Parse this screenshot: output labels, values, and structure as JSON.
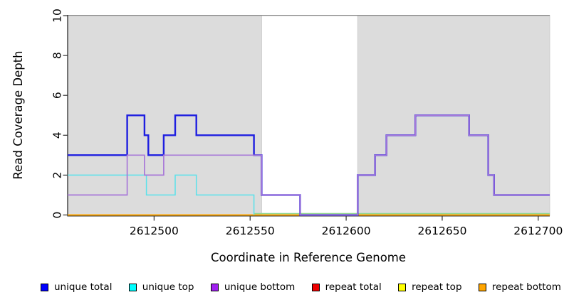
{
  "chart_data": {
    "type": "line",
    "subtype": "step-after-coverage",
    "title": "",
    "xlabel": "Coordinate in Reference Genome",
    "ylabel": "Read Coverage Depth",
    "xlim": [
      2612455,
      2612706
    ],
    "ylim": [
      0,
      10
    ],
    "x_ticks": [
      2612500,
      2612550,
      2612600,
      2612650,
      2612700
    ],
    "y_ticks": [
      0,
      2,
      4,
      6,
      8,
      10
    ],
    "grid": false,
    "legend_position": "bottom",
    "shaded_regions": [
      {
        "from": 2612455,
        "to": 2612556,
        "color": "#dcdcdc"
      },
      {
        "from": 2612606,
        "to": 2612706,
        "color": "#dcdcdc"
      }
    ],
    "series": [
      {
        "name": "unique total",
        "color": "#1e1ee0",
        "width": 2.4,
        "extend": true,
        "steps": [
          [
            2612455,
            3
          ],
          [
            2612486,
            5
          ],
          [
            2612495,
            4
          ],
          [
            2612497,
            3
          ],
          [
            2612505,
            4
          ],
          [
            2612511,
            5
          ],
          [
            2612522,
            4
          ],
          [
            2612552,
            3
          ],
          [
            2612556,
            1
          ],
          [
            2612576,
            0
          ],
          [
            2612606,
            2
          ],
          [
            2612615,
            3
          ],
          [
            2612621,
            4
          ],
          [
            2612636,
            5
          ],
          [
            2612664,
            4
          ],
          [
            2612674,
            2
          ],
          [
            2612677,
            1
          ]
        ]
      },
      {
        "name": "unique top",
        "color": "#5ae2ea",
        "width": 1.5,
        "extend": false,
        "steps": [
          [
            2612455,
            2
          ],
          [
            2612496,
            1
          ],
          [
            2612511,
            2
          ],
          [
            2612522,
            1
          ],
          [
            2612552,
            0
          ]
        ]
      },
      {
        "name": "unique bottom",
        "color": "#a878d8",
        "width": 1.7,
        "extend": true,
        "steps": [
          [
            2612455,
            1
          ],
          [
            2612486,
            3
          ],
          [
            2612495,
            2
          ],
          [
            2612505,
            3
          ],
          [
            2612556,
            1
          ],
          [
            2612576,
            0
          ],
          [
            2612606,
            2
          ],
          [
            2612615,
            3
          ],
          [
            2612621,
            4
          ],
          [
            2612636,
            5
          ],
          [
            2612664,
            4
          ],
          [
            2612674,
            2
          ],
          [
            2612677,
            1
          ]
        ]
      },
      {
        "name": "repeat total",
        "color": "#ee0000",
        "width": 1.5,
        "extend": true,
        "steps": [
          [
            2612455,
            0
          ]
        ]
      },
      {
        "name": "repeat top",
        "color": "#ffff00",
        "width": 1.5,
        "extend": true,
        "steps": [
          [
            2612455,
            0
          ]
        ]
      },
      {
        "name": "repeat bottom",
        "color": "#ffa500",
        "width": 1.8,
        "extend": true,
        "steps": [
          [
            2612455,
            0
          ]
        ]
      }
    ],
    "zero_blend_overlay": {
      "from": 2612552,
      "to": 2612706,
      "color": "#90d690",
      "note": "unique top at depth 0 drawn over repeat bottom zero line renders light green"
    }
  },
  "legend": {
    "items": [
      {
        "label": "unique total",
        "color": "#0000ff"
      },
      {
        "label": "unique top",
        "color": "#00ffff"
      },
      {
        "label": "unique bottom",
        "color": "#a020f0"
      },
      {
        "label": "repeat total",
        "color": "#ee0000"
      },
      {
        "label": "repeat top",
        "color": "#ffff00"
      },
      {
        "label": "repeat bottom",
        "color": "#ffa500"
      }
    ]
  }
}
